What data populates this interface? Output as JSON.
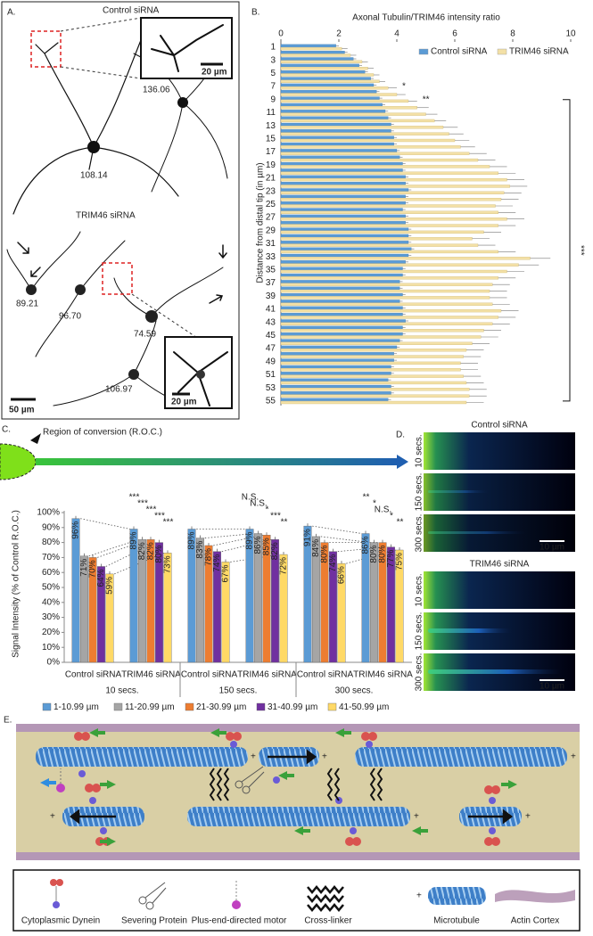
{
  "panel_labels": {
    "a": "A.",
    "b": "B.",
    "c": "C.",
    "d": "D.",
    "e": "E."
  },
  "panel_a": {
    "control_title": "Control siRNA",
    "trim46_title": "TRIM46 siRNA",
    "inset_scale": "20 µm",
    "control_values": [
      "136.06",
      "108.14"
    ],
    "trim46_values": [
      "89.21",
      "96.70",
      "74.59",
      "106.97"
    ],
    "scale": "50 µm"
  },
  "chart_data": [
    {
      "type": "bar",
      "orientation": "horizontal",
      "title": "Axonal Tubulin/TRIM46 intensity ratio",
      "y_label": "Distance from distal tip (in µm)",
      "categories": [
        "1",
        null,
        "3",
        null,
        "5",
        null,
        "7",
        null,
        "9",
        null,
        "11",
        null,
        "13",
        null,
        "15",
        null,
        "17",
        null,
        "19",
        null,
        "21",
        null,
        "23",
        null,
        "25",
        null,
        "27",
        null,
        "29",
        null,
        "31",
        null,
        "33",
        null,
        "35",
        null,
        "37",
        null,
        "39",
        null,
        "41",
        null,
        "43",
        null,
        "45",
        null,
        "47",
        null,
        "49",
        null,
        "51",
        null,
        "53",
        null,
        "55"
      ],
      "series": [
        {
          "name": "Control siRNA",
          "color": "#5b9bd5",
          "values": [
            1.9,
            2.2,
            2.5,
            2.7,
            2.9,
            3.1,
            3.2,
            3.3,
            3.4,
            3.5,
            3.6,
            3.7,
            3.8,
            3.8,
            3.9,
            3.9,
            4.0,
            4.1,
            4.2,
            4.2,
            4.3,
            4.3,
            4.4,
            4.3,
            4.3,
            4.2,
            4.3,
            4.3,
            4.4,
            4.4,
            4.4,
            4.5,
            4.4,
            4.3,
            4.2,
            4.2,
            4.1,
            4.1,
            4.2,
            4.1,
            4.2,
            4.2,
            4.3,
            4.2,
            4.2,
            4.1,
            4.0,
            3.9,
            3.9,
            3.8,
            3.8,
            3.7,
            3.8,
            3.8,
            3.7
          ],
          "errors": [
            0.1,
            0.1,
            0.1,
            0.1,
            0.1,
            0.1,
            0.1,
            0.1,
            0.1,
            0.1,
            0.1,
            0.1,
            0.1,
            0.1,
            0.1,
            0.1,
            0.1,
            0.1,
            0.1,
            0.1,
            0.1,
            0.1,
            0.1,
            0.1,
            0.1,
            0.1,
            0.1,
            0.1,
            0.1,
            0.1,
            0.1,
            0.1,
            0.1,
            0.1,
            0.1,
            0.1,
            0.1,
            0.1,
            0.1,
            0.1,
            0.1,
            0.1,
            0.1,
            0.1,
            0.1,
            0.1,
            0.1,
            0.1,
            0.1,
            0.1,
            0.1,
            0.1,
            0.1,
            0.1,
            0.1
          ]
        },
        {
          "name": "TRIM46 siRNA",
          "color": "#f3e0a6",
          "values": [
            2.1,
            2.4,
            2.8,
            3.0,
            3.2,
            3.4,
            3.7,
            4.0,
            4.4,
            4.7,
            5.0,
            5.3,
            5.6,
            5.8,
            6.0,
            6.2,
            6.5,
            6.8,
            7.2,
            7.5,
            7.8,
            7.9,
            7.7,
            7.6,
            7.4,
            7.5,
            7.8,
            7.5,
            7.0,
            6.6,
            6.8,
            7.5,
            8.6,
            8.2,
            7.8,
            7.5,
            7.3,
            7.2,
            7.2,
            7.3,
            7.6,
            7.5,
            7.3,
            7.0,
            6.9,
            6.6,
            6.4,
            6.3,
            6.2,
            6.2,
            6.3,
            6.4,
            6.5,
            6.5,
            6.4
          ],
          "errors": [
            0.2,
            0.2,
            0.2,
            0.2,
            0.2,
            0.2,
            0.3,
            0.3,
            0.3,
            0.4,
            0.4,
            0.4,
            0.5,
            0.5,
            0.5,
            0.5,
            0.6,
            0.6,
            0.6,
            0.6,
            0.6,
            0.6,
            0.6,
            0.6,
            0.6,
            0.6,
            0.6,
            0.6,
            0.6,
            0.6,
            0.6,
            0.6,
            0.7,
            0.7,
            0.6,
            0.6,
            0.6,
            0.6,
            0.6,
            0.6,
            0.6,
            0.6,
            0.6,
            0.6,
            0.6,
            0.6,
            0.6,
            0.6,
            0.6,
            0.6,
            0.6,
            0.6,
            0.6,
            0.6,
            0.6
          ]
        }
      ],
      "xlim": [
        0,
        10
      ],
      "xticks": [
        0,
        2,
        4,
        6,
        8,
        10
      ],
      "annotations": [
        "*",
        "**",
        "***"
      ],
      "legend": "upper right"
    },
    {
      "type": "bar",
      "annotation": "Region of conversion (R.O.C.)",
      "y_label": "Signal Intensity (% of Control R.O.C.)",
      "categories": [
        "Control siRNA",
        "TRIM46 siRNA",
        "Control siRNA",
        "TRIM46 siRNA",
        "Control siRNA",
        "TRIM46 siRNA"
      ],
      "groups": [
        "10 secs.",
        "150 secs.",
        "300 secs."
      ],
      "series": [
        {
          "name": "1-10.99 µm",
          "color": "#5b9bd5",
          "values": [
            96,
            89,
            89,
            89,
            91,
            86
          ],
          "value_labels": [
            "96%",
            "89%",
            "89%",
            "89%",
            "91%",
            "86%"
          ]
        },
        {
          "name": "11-20.99 µm",
          "color": "#a5a5a5",
          "values": [
            71,
            82,
            83,
            86,
            84,
            80
          ],
          "value_labels": [
            "71%",
            "82%",
            "83%",
            "86%",
            "84%",
            "80%"
          ]
        },
        {
          "name": "21-30.99 µm",
          "color": "#ed7d31",
          "values": [
            70,
            82,
            78,
            85,
            80,
            80
          ],
          "value_labels": [
            "70%",
            "82%",
            "78%",
            "85%",
            "80%",
            "80%"
          ]
        },
        {
          "name": "31-40.99 µm",
          "color": "#7030a0",
          "values": [
            64,
            80,
            74,
            82,
            74,
            77
          ],
          "value_labels": [
            "64%",
            "80%",
            "74%",
            "82%",
            "74%",
            "77%"
          ]
        },
        {
          "name": "41-50.99 µm",
          "color": "#ffd966",
          "values": [
            59,
            73,
            67,
            72,
            66,
            75
          ],
          "value_labels": [
            "59%",
            "73%",
            "67%",
            "72%",
            "66%",
            "75%"
          ]
        }
      ],
      "ylim": [
        0,
        100
      ],
      "yticks": [
        {
          "value": 0,
          "label": "0%"
        },
        {
          "value": 10,
          "label": "10%"
        },
        {
          "value": 20,
          "label": "20%"
        },
        {
          "value": 30,
          "label": "30%"
        },
        {
          "value": 40,
          "label": "40%"
        },
        {
          "value": 50,
          "label": "50%"
        },
        {
          "value": 60,
          "label": "60%"
        },
        {
          "value": 70,
          "label": "70%"
        },
        {
          "value": 80,
          "label": "80%"
        },
        {
          "value": 90,
          "label": "90%"
        },
        {
          "value": 100,
          "label": "100%"
        }
      ],
      "significance": [
        [
          "***",
          "***",
          "***",
          "***",
          "***"
        ],
        [
          "N.S.",
          "N.S.",
          "*",
          "***",
          "**"
        ],
        [
          "**",
          "*",
          "N.S.",
          "*",
          "**"
        ]
      ],
      "legend": "bottom"
    }
  ],
  "panel_d": {
    "control_title": "Control siRNA",
    "trim46_title": "TRIM46 siRNA",
    "times": [
      "10 secs.",
      "150 secs.",
      "300 secs."
    ],
    "scale": "10 µm"
  },
  "panel_e": {
    "plus": "+",
    "legend": [
      "Cytoplasmic Dynein",
      "Severing Protein",
      "Plus-end-directed motor",
      "Cross-linker",
      "Microtubule",
      "Actin Cortex"
    ]
  }
}
